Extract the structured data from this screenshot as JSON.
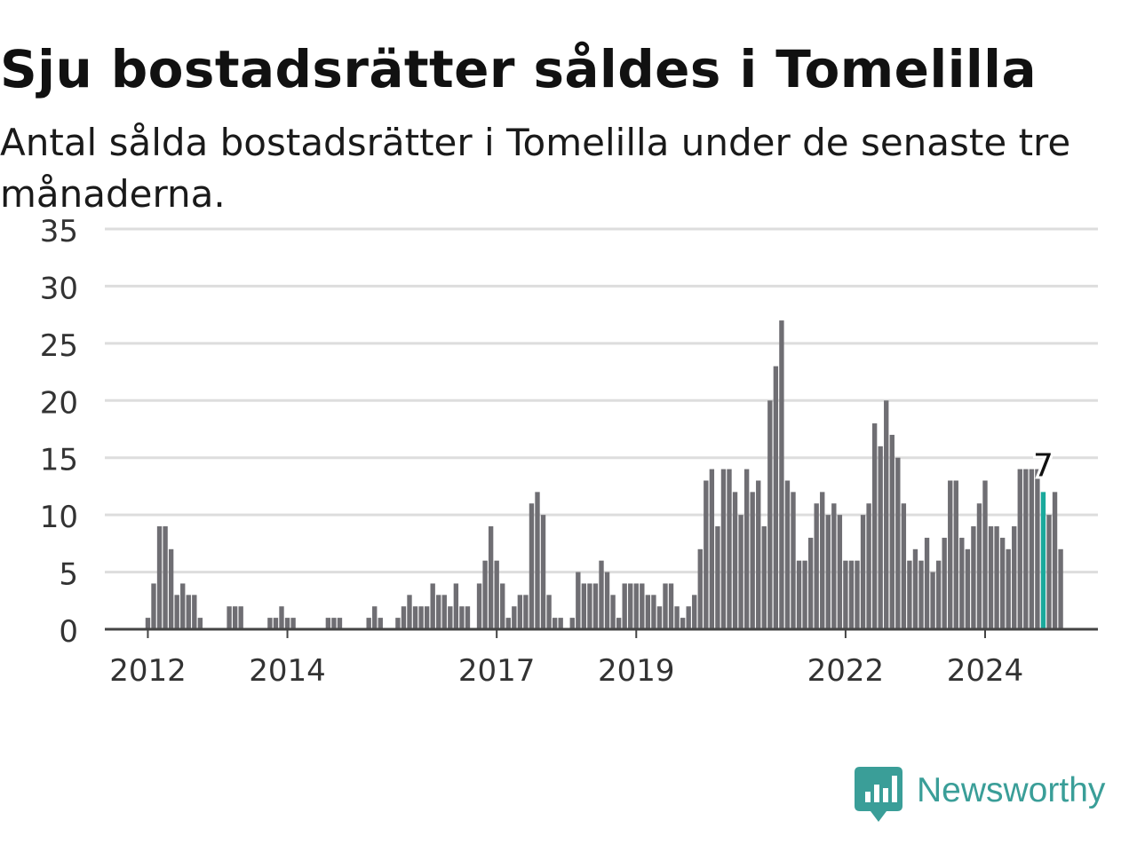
{
  "title": "Sju bostadsrätter såldes i Tomelilla",
  "subtitle": "Antal sålda bostadsrätter i Tomelilla under de senaste tre månaderna.",
  "brand": {
    "name": "Newsworthy",
    "icon": "newsworthy-logo-icon",
    "color": "#3a9e98"
  },
  "colors": {
    "bar": "#6f6e73",
    "highlight": "#1aa99c",
    "grid": "#dddddd",
    "axis": "#444444",
    "text": "#333333"
  },
  "chart_data": {
    "type": "bar",
    "title": "Sju bostadsrätter såldes i Tomelilla",
    "subtitle": "Antal sålda bostadsrätter i Tomelilla under de senaste tre månaderna.",
    "xlabel": "",
    "ylabel": "",
    "ylim": [
      0,
      35
    ],
    "yticks": [
      0,
      5,
      10,
      15,
      20,
      25,
      30,
      35
    ],
    "xticks": [
      "2012",
      "2014",
      "2017",
      "2019",
      "2022",
      "2024"
    ],
    "xtick_index": [
      0,
      24,
      60,
      84,
      120,
      144
    ],
    "grid": true,
    "legend": "none",
    "start_offset": -1,
    "highlight_index": 154,
    "highlight_label": "7",
    "values": [
      1,
      4,
      9,
      9,
      7,
      3,
      4,
      3,
      3,
      1,
      0,
      0,
      0,
      0,
      2,
      2,
      2,
      0,
      0,
      0,
      0,
      1,
      1,
      2,
      1,
      1,
      0,
      0,
      0,
      0,
      0,
      1,
      1,
      1,
      0,
      0,
      0,
      0,
      1,
      2,
      1,
      0,
      0,
      1,
      2,
      3,
      2,
      2,
      2,
      4,
      3,
      3,
      2,
      4,
      2,
      2,
      0,
      4,
      6,
      9,
      6,
      4,
      1,
      2,
      3,
      3,
      11,
      12,
      10,
      3,
      1,
      1,
      0,
      1,
      5,
      4,
      4,
      4,
      6,
      5,
      3,
      1,
      4,
      4,
      4,
      4,
      3,
      3,
      2,
      4,
      4,
      2,
      1,
      2,
      3,
      7,
      13,
      14,
      9,
      14,
      14,
      12,
      10,
      14,
      12,
      13,
      9,
      20,
      23,
      27,
      13,
      12,
      6,
      6,
      8,
      11,
      12,
      10,
      11,
      10,
      6,
      6,
      6,
      10,
      11,
      18,
      16,
      20,
      17,
      15,
      11,
      6,
      7,
      6,
      8,
      5,
      6,
      8,
      13,
      13,
      8,
      7,
      9,
      11,
      13,
      9,
      9,
      8,
      7,
      9,
      14,
      14,
      14,
      14,
      12,
      10,
      12,
      7
    ]
  }
}
